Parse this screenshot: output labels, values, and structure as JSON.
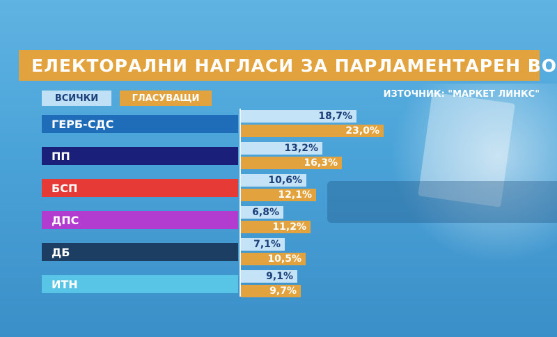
{
  "title": "ЕЛЕКТОРАЛНИ НАГЛАСИ ЗА ПАРЛАМЕНТАРЕН ВОТ",
  "legend": {
    "all": "ВСИЧКИ",
    "voters": "ГЛАСУВАЩИ"
  },
  "source": "ИЗТОЧНИК: \"МАРКЕТ ЛИНКС\"",
  "chart_data": {
    "type": "bar",
    "title": "ЕЛЕКТОРАЛНИ НАГЛАСИ ЗА ПАРЛАМЕНТАРЕН ВОТ",
    "categories": [
      "ГЕРБ-СДС",
      "ПП",
      "БСП",
      "ДПС",
      "ДБ",
      "ИТН"
    ],
    "category_colors": [
      "#1f6db8",
      "#1a1f7a",
      "#e53a35",
      "#b23bd0",
      "#1d3e63",
      "#58c4e6"
    ],
    "series": [
      {
        "name": "ВСИЧКИ",
        "color": "#c4e3f6",
        "values": [
          18.7,
          13.2,
          10.6,
          6.8,
          7.1,
          9.1
        ],
        "labels": [
          "18,7%",
          "13,2%",
          "10,6%",
          "6,8%",
          "7,1%",
          "9,1%"
        ]
      },
      {
        "name": "ГЛАСУВАЩИ",
        "color": "#e2a33e",
        "values": [
          23.0,
          16.3,
          12.1,
          11.2,
          10.5,
          9.7
        ],
        "labels": [
          "23,0%",
          "16,3%",
          "12,1%",
          "11,2%",
          "10,5%",
          "9,7%"
        ]
      }
    ],
    "unit": "%",
    "orientation": "horizontal",
    "legend_position": "top-left",
    "grid": false
  }
}
